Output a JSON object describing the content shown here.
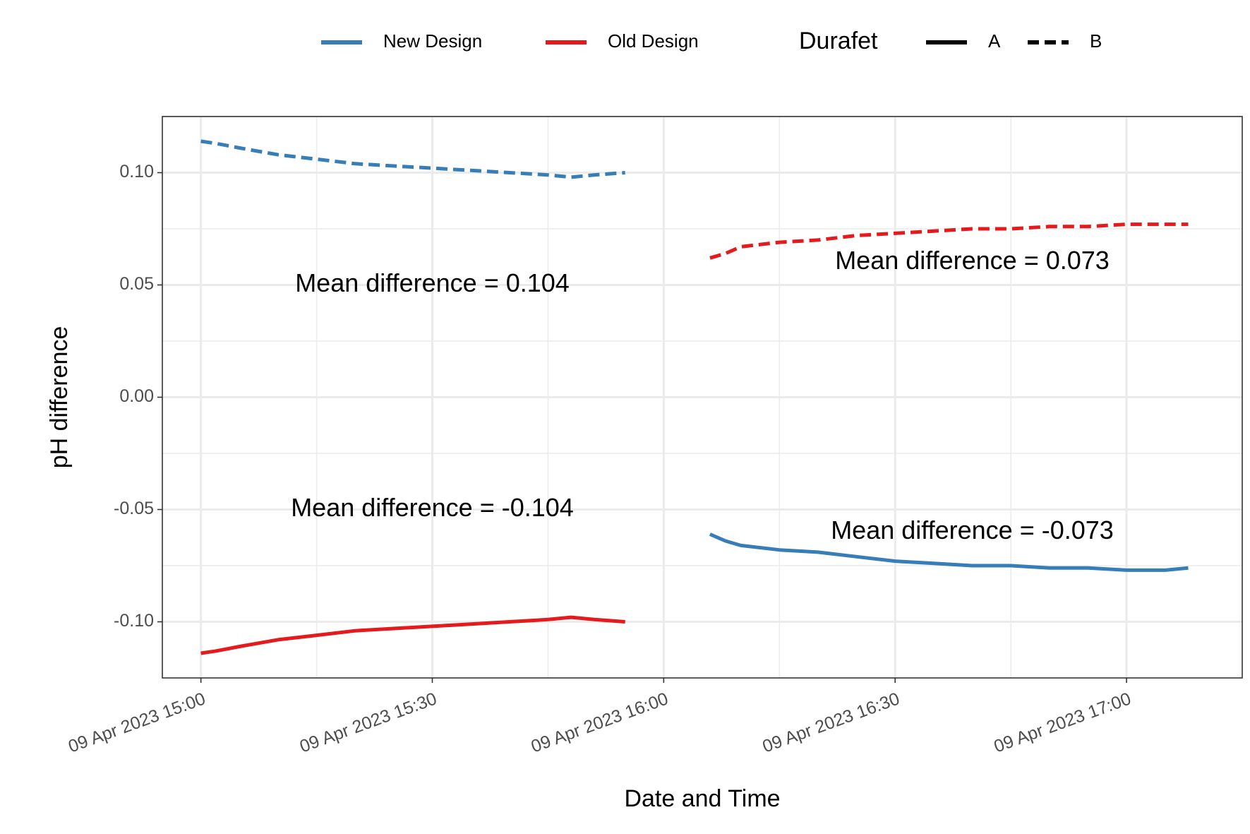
{
  "chart_data": {
    "type": "line",
    "xlabel": "Date and Time",
    "ylabel": "pH difference",
    "x_unit": "datetime",
    "xlim": [
      "2023-04-09 14:55",
      "2023-04-09 17:15"
    ],
    "ylim": [
      -0.125,
      0.125
    ],
    "x_ticks": [
      {
        "value": "2023-04-09 15:00",
        "label": "09 Apr 2023 15:00"
      },
      {
        "value": "2023-04-09 15:30",
        "label": "09 Apr 2023 15:30"
      },
      {
        "value": "2023-04-09 16:00",
        "label": "09 Apr 2023 16:00"
      },
      {
        "value": "2023-04-09 16:30",
        "label": "09 Apr 2023 16:30"
      },
      {
        "value": "2023-04-09 17:00",
        "label": "09 Apr 2023 17:00"
      }
    ],
    "y_ticks": [
      {
        "value": 0.1,
        "label": "0.10"
      },
      {
        "value": 0.05,
        "label": "0.05"
      },
      {
        "value": 0.0,
        "label": "0.00"
      },
      {
        "value": -0.05,
        "label": "-0.05"
      },
      {
        "value": -0.1,
        "label": "-0.10"
      }
    ],
    "grid": true,
    "legend_position": "top",
    "legend": {
      "color_items": [
        {
          "label": "New Design",
          "color": "#377eb8"
        },
        {
          "label": "Old Design",
          "color": "#e41a1c"
        }
      ],
      "linetype_title": "Durafet",
      "linetype_items": [
        {
          "label": "A",
          "dash": "solid"
        },
        {
          "label": "B",
          "dash": "dashed"
        }
      ]
    },
    "series": [
      {
        "design": "New Design",
        "durafet": "B",
        "color": "#377eb8",
        "dash": "dashed",
        "x": [
          "2023-04-09 15:00",
          "2023-04-09 15:02",
          "2023-04-09 15:05",
          "2023-04-09 15:10",
          "2023-04-09 15:15",
          "2023-04-09 15:20",
          "2023-04-09 15:25",
          "2023-04-09 15:30",
          "2023-04-09 15:35",
          "2023-04-09 15:40",
          "2023-04-09 15:45",
          "2023-04-09 15:48",
          "2023-04-09 15:51",
          "2023-04-09 15:55"
        ],
        "y": [
          0.114,
          0.113,
          0.111,
          0.108,
          0.106,
          0.104,
          0.103,
          0.102,
          0.101,
          0.1,
          0.099,
          0.098,
          0.099,
          0.1
        ]
      },
      {
        "design": "Old Design",
        "durafet": "A",
        "color": "#e41a1c",
        "dash": "solid",
        "x": [
          "2023-04-09 15:00",
          "2023-04-09 15:02",
          "2023-04-09 15:05",
          "2023-04-09 15:10",
          "2023-04-09 15:15",
          "2023-04-09 15:20",
          "2023-04-09 15:25",
          "2023-04-09 15:30",
          "2023-04-09 15:35",
          "2023-04-09 15:40",
          "2023-04-09 15:45",
          "2023-04-09 15:48",
          "2023-04-09 15:51",
          "2023-04-09 15:55"
        ],
        "y": [
          -0.114,
          -0.113,
          -0.111,
          -0.108,
          -0.106,
          -0.104,
          -0.103,
          -0.102,
          -0.101,
          -0.1,
          -0.099,
          -0.098,
          -0.099,
          -0.1
        ]
      },
      {
        "design": "Old Design",
        "durafet": "B",
        "color": "#e41a1c",
        "dash": "dashed",
        "x": [
          "2023-04-09 16:06",
          "2023-04-09 16:08",
          "2023-04-09 16:10",
          "2023-04-09 16:15",
          "2023-04-09 16:20",
          "2023-04-09 16:25",
          "2023-04-09 16:30",
          "2023-04-09 16:35",
          "2023-04-09 16:40",
          "2023-04-09 16:45",
          "2023-04-09 16:50",
          "2023-04-09 16:55",
          "2023-04-09 17:00",
          "2023-04-09 17:05",
          "2023-04-09 17:08"
        ],
        "y": [
          0.062,
          0.064,
          0.067,
          0.069,
          0.07,
          0.072,
          0.073,
          0.074,
          0.075,
          0.075,
          0.076,
          0.076,
          0.077,
          0.077,
          0.077
        ]
      },
      {
        "design": "New Design",
        "durafet": "A",
        "color": "#377eb8",
        "dash": "solid",
        "x": [
          "2023-04-09 16:06",
          "2023-04-09 16:08",
          "2023-04-09 16:10",
          "2023-04-09 16:15",
          "2023-04-09 16:20",
          "2023-04-09 16:25",
          "2023-04-09 16:30",
          "2023-04-09 16:35",
          "2023-04-09 16:40",
          "2023-04-09 16:45",
          "2023-04-09 16:50",
          "2023-04-09 16:55",
          "2023-04-09 17:00",
          "2023-04-09 17:05",
          "2023-04-09 17:08"
        ],
        "y": [
          -0.061,
          -0.064,
          -0.066,
          -0.068,
          -0.069,
          -0.071,
          -0.073,
          -0.074,
          -0.075,
          -0.075,
          -0.076,
          -0.076,
          -0.077,
          -0.077,
          -0.076
        ]
      }
    ],
    "annotations": [
      {
        "text": "Mean difference = 0.104",
        "x": "2023-04-09 15:30",
        "y": 0.05
      },
      {
        "text": "Mean difference = -0.104",
        "x": "2023-04-09 15:30",
        "y": -0.05
      },
      {
        "text": "Mean difference = 0.073",
        "x": "2023-04-09 16:40",
        "y": 0.06
      },
      {
        "text": "Mean difference = -0.073",
        "x": "2023-04-09 16:40",
        "y": -0.06
      }
    ]
  }
}
